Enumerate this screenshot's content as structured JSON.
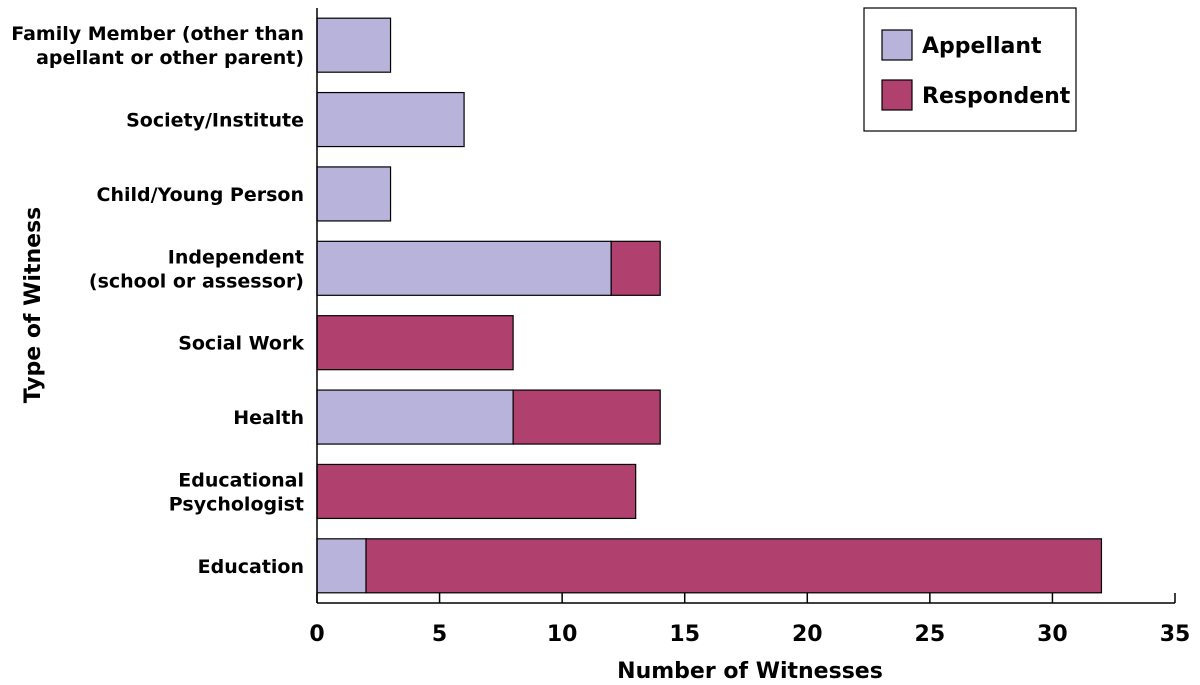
{
  "chart_data": {
    "type": "bar",
    "orientation": "horizontal",
    "stacked": true,
    "categories": [
      [
        "Family Member (other than",
        "apellant or other parent)"
      ],
      [
        "Society/Institute"
      ],
      [
        "Child/Young Person"
      ],
      [
        "Independent",
        "(school or assessor)"
      ],
      [
        "Social Work"
      ],
      [
        "Health"
      ],
      [
        "Educational",
        "Psychologist"
      ],
      [
        "Education"
      ]
    ],
    "series": [
      {
        "name": "Appellant",
        "color": "#b7b3db",
        "values": [
          3,
          6,
          3,
          12,
          0,
          8,
          0,
          2
        ]
      },
      {
        "name": "Respondent",
        "color": "#b0416f",
        "values": [
          0,
          0,
          0,
          2,
          8,
          6,
          13,
          30
        ]
      }
    ],
    "xlabel": "Number of Witnesses",
    "ylabel": "Type of Witness",
    "xlim": [
      0,
      35
    ],
    "xticks": [
      0,
      5,
      10,
      15,
      20,
      25,
      30,
      35
    ],
    "grid": false,
    "legend": "top-right"
  }
}
